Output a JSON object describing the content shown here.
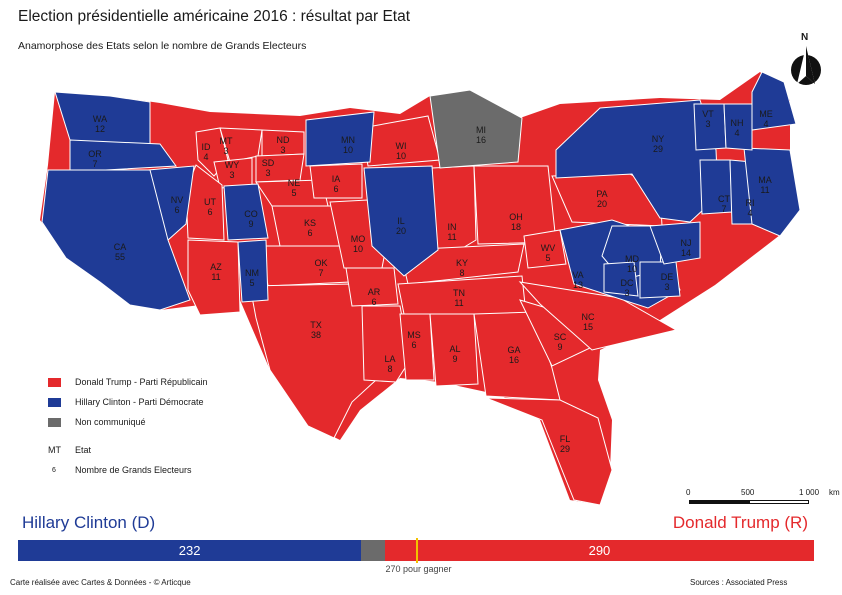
{
  "title": "Election présidentielle américaine 2016 : résultat par Etat",
  "subtitle": "Anamorphose des Etats selon le nombre de Grands Electeurs",
  "north": "N",
  "colors": {
    "rep": "#e4292c",
    "dem": "#1f3b96",
    "na": "#6b6b6b"
  },
  "states": [
    {
      "code": "WA",
      "ev": "12",
      "party": "dem"
    },
    {
      "code": "OR",
      "ev": "7",
      "party": "dem"
    },
    {
      "code": "CA",
      "ev": "55",
      "party": "dem"
    },
    {
      "code": "NV",
      "ev": "6",
      "party": "dem"
    },
    {
      "code": "ID",
      "ev": "4",
      "party": "rep"
    },
    {
      "code": "MT",
      "ev": "3",
      "party": "rep"
    },
    {
      "code": "WY",
      "ev": "3",
      "party": "rep"
    },
    {
      "code": "UT",
      "ev": "6",
      "party": "rep"
    },
    {
      "code": "AZ",
      "ev": "11",
      "party": "rep"
    },
    {
      "code": "CO",
      "ev": "9",
      "party": "dem"
    },
    {
      "code": "NM",
      "ev": "5",
      "party": "dem"
    },
    {
      "code": "ND",
      "ev": "3",
      "party": "rep"
    },
    {
      "code": "SD",
      "ev": "3",
      "party": "rep"
    },
    {
      "code": "NE",
      "ev": "5",
      "party": "rep"
    },
    {
      "code": "KS",
      "ev": "6",
      "party": "rep"
    },
    {
      "code": "OK",
      "ev": "7",
      "party": "rep"
    },
    {
      "code": "TX",
      "ev": "38",
      "party": "rep"
    },
    {
      "code": "MN",
      "ev": "10",
      "party": "dem"
    },
    {
      "code": "IA",
      "ev": "6",
      "party": "rep"
    },
    {
      "code": "MO",
      "ev": "10",
      "party": "rep"
    },
    {
      "code": "AR",
      "ev": "6",
      "party": "rep"
    },
    {
      "code": "LA",
      "ev": "8",
      "party": "rep"
    },
    {
      "code": "WI",
      "ev": "10",
      "party": "rep"
    },
    {
      "code": "IL",
      "ev": "20",
      "party": "dem"
    },
    {
      "code": "MI",
      "ev": "16",
      "party": "na"
    },
    {
      "code": "IN",
      "ev": "11",
      "party": "rep"
    },
    {
      "code": "OH",
      "ev": "18",
      "party": "rep"
    },
    {
      "code": "KY",
      "ev": "8",
      "party": "rep"
    },
    {
      "code": "TN",
      "ev": "11",
      "party": "rep"
    },
    {
      "code": "MS",
      "ev": "6",
      "party": "rep"
    },
    {
      "code": "AL",
      "ev": "9",
      "party": "rep"
    },
    {
      "code": "GA",
      "ev": "16",
      "party": "rep"
    },
    {
      "code": "FL",
      "ev": "29",
      "party": "rep"
    },
    {
      "code": "SC",
      "ev": "9",
      "party": "rep"
    },
    {
      "code": "NC",
      "ev": "15",
      "party": "rep"
    },
    {
      "code": "VA",
      "ev": "13",
      "party": "dem"
    },
    {
      "code": "WV",
      "ev": "5",
      "party": "rep"
    },
    {
      "code": "PA",
      "ev": "20",
      "party": "rep"
    },
    {
      "code": "NY",
      "ev": "29",
      "party": "dem"
    },
    {
      "code": "NJ",
      "ev": "14",
      "party": "dem"
    },
    {
      "code": "MD",
      "ev": "10",
      "party": "dem"
    },
    {
      "code": "DE",
      "ev": "3",
      "party": "dem"
    },
    {
      "code": "DC",
      "ev": "3",
      "party": "dem"
    },
    {
      "code": "CT",
      "ev": "7",
      "party": "dem"
    },
    {
      "code": "RI",
      "ev": "4",
      "party": "dem"
    },
    {
      "code": "MA",
      "ev": "11",
      "party": "dem"
    },
    {
      "code": "VT",
      "ev": "3",
      "party": "dem"
    },
    {
      "code": "NH",
      "ev": "4",
      "party": "dem"
    },
    {
      "code": "ME",
      "ev": "4",
      "party": "dem"
    }
  ],
  "legend": {
    "rep": "Donald Trump - Parti Républicain",
    "dem": "Hillary Clinton - Parti Démocrate",
    "na": "Non communiqué",
    "state_code_example": "MT",
    "state_label": "Etat",
    "ev_example": "6",
    "ev_label": "Nombre de Grands Electeurs"
  },
  "scale": {
    "ticks": [
      "0",
      "500",
      "1 000"
    ],
    "unit": "km"
  },
  "result": {
    "dem_name": "Hillary Clinton (D)",
    "rep_name": "Donald Trump (R)",
    "dem_votes": "232",
    "rep_votes": "290",
    "na_votes": 16,
    "total": 538,
    "threshold": 270,
    "threshold_label": "270 pour gagner"
  },
  "footer": {
    "credit": "Carte réalisée avec Cartes & Données - © Articque",
    "source": "Sources : Associated Press"
  }
}
